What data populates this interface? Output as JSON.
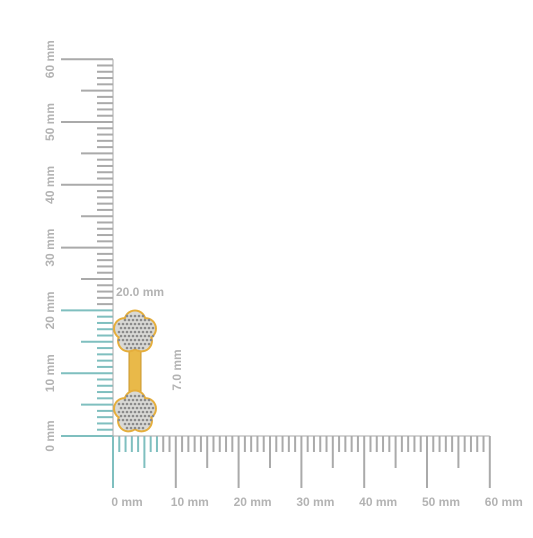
{
  "vertical_ruler": {
    "labels": [
      "0 mm",
      "10 mm",
      "20 mm",
      "30 mm",
      "40 mm",
      "50 mm",
      "60 mm"
    ]
  },
  "horizontal_ruler": {
    "labels": [
      "0 mm",
      "10 mm",
      "20 mm",
      "30 mm",
      "40 mm",
      "50 mm",
      "60 mm"
    ]
  },
  "dimensions": {
    "height": "20.0 mm",
    "width": "7.0 mm"
  }
}
